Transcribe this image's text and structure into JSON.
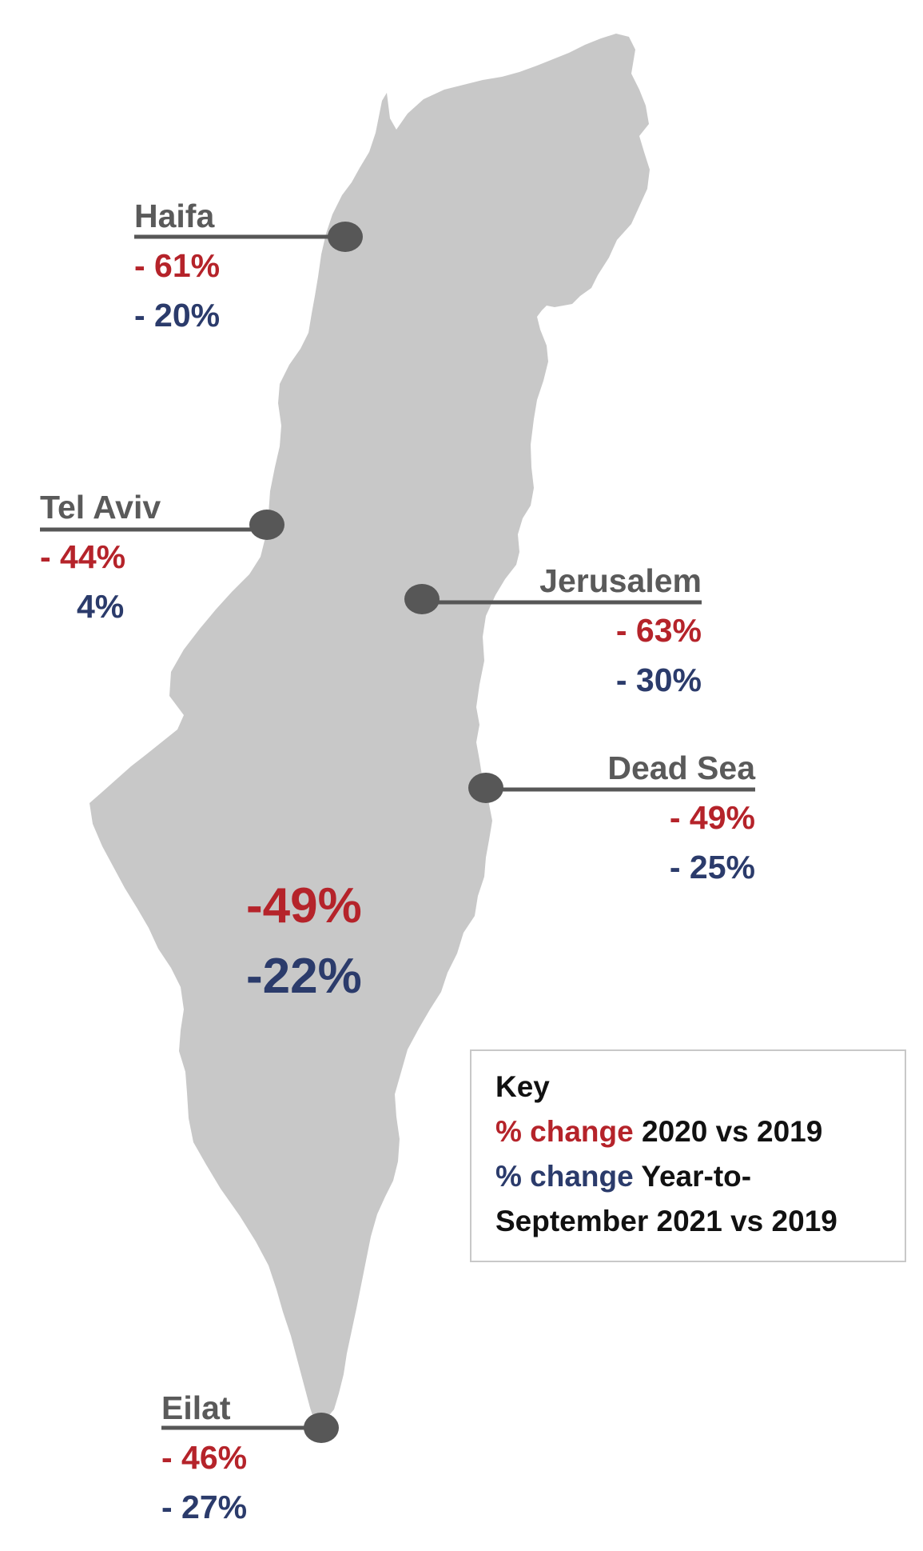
{
  "colors": {
    "land": "#c8c8c8",
    "connector": "#575757",
    "red": "#b5232a",
    "blue": "#2b3b6b",
    "label": "#5a5a5a"
  },
  "cities": {
    "haifa": {
      "name": "Haifa",
      "change_2020": "- 61%",
      "change_2021": "- 20%"
    },
    "tel_aviv": {
      "name": "Tel Aviv",
      "change_2020": "- 44%",
      "change_2021": "4%"
    },
    "jerusalem": {
      "name": "Jerusalem",
      "change_2020": "- 63%",
      "change_2021": "- 30%"
    },
    "dead_sea": {
      "name": "Dead Sea",
      "change_2020": "- 49%",
      "change_2021": "- 25%"
    },
    "eilat": {
      "name": "Eilat",
      "change_2020": "- 46%",
      "change_2021": "- 27%"
    }
  },
  "national": {
    "change_2020": "-49%",
    "change_2021": "-22%"
  },
  "key": {
    "title": "Key",
    "line1_colored": "% change",
    "line1_rest": "2020 vs 2019",
    "line2_colored": "% change",
    "line2_rest": "Year-to-",
    "line3": "September 2021 vs 2019"
  }
}
